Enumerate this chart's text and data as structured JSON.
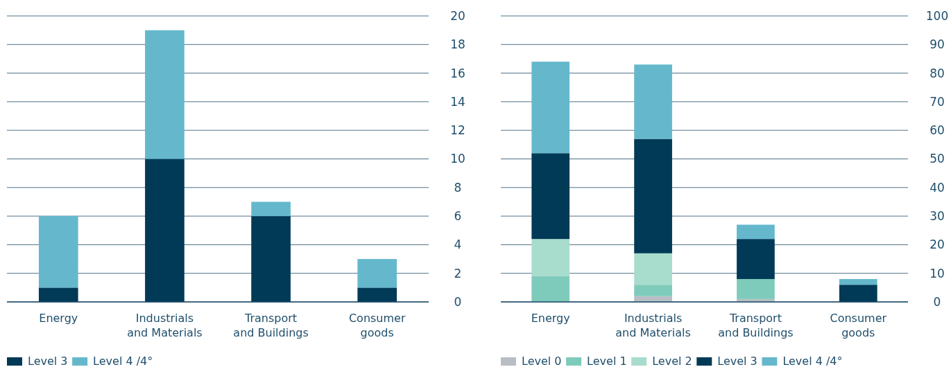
{
  "chart_data": [
    {
      "type": "bar",
      "stacked": true,
      "categories": [
        "Energy",
        "Industrials\nand Materials",
        "Transport\nand Buildings",
        "Consumer\ngoods"
      ],
      "ylim": [
        0,
        20
      ],
      "yticks": [
        0,
        2,
        4,
        6,
        8,
        10,
        12,
        14,
        16,
        18,
        20
      ],
      "grid": "y",
      "legend": "bottom",
      "series": [
        {
          "name": "Level 3",
          "color": "#003a56",
          "values": [
            1,
            10,
            6,
            1
          ]
        },
        {
          "name": "Level 4 /4°",
          "color": "#65b8cc",
          "values": [
            5,
            9,
            1,
            2
          ]
        }
      ]
    },
    {
      "type": "bar",
      "stacked": true,
      "categories": [
        "Energy",
        "Industrials\nand Materials",
        "Transport\nand Buildings",
        "Consumer\ngoods"
      ],
      "ylim": [
        0,
        100
      ],
      "yticks": [
        0,
        10,
        20,
        30,
        40,
        50,
        60,
        70,
        80,
        90,
        100
      ],
      "grid": "y",
      "legend": "bottom",
      "series": [
        {
          "name": "Level 0",
          "color": "#b8bec4",
          "values": [
            0,
            2,
            1,
            0
          ]
        },
        {
          "name": "Level 1",
          "color": "#7fcbbb",
          "values": [
            9,
            4,
            7,
            0
          ]
        },
        {
          "name": "Level 2",
          "color": "#a8dccd",
          "values": [
            13,
            11,
            0,
            0
          ]
        },
        {
          "name": "Level 3",
          "color": "#003a56",
          "values": [
            30,
            40,
            14,
            6
          ]
        },
        {
          "name": "Level 4 /4°",
          "color": "#65b8cc",
          "values": [
            32,
            26,
            5,
            2
          ]
        }
      ]
    }
  ]
}
